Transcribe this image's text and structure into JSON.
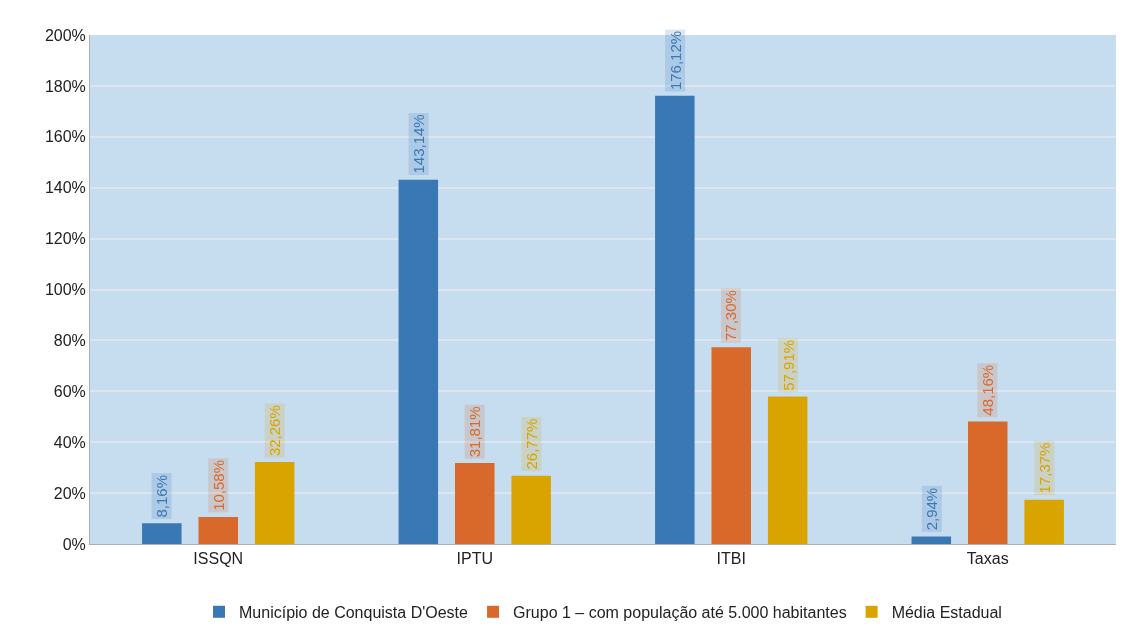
{
  "chart_data": {
    "type": "bar",
    "categories": [
      "ISSQN",
      "IPTU",
      "ITBI",
      "Taxas"
    ],
    "series": [
      {
        "name": "Município de Conquista D'Oeste",
        "color": "#3a78b5",
        "values": [
          8.16,
          143.14,
          176.12,
          2.94
        ],
        "value_labels": [
          "8,16%",
          "143,14%",
          "176,12%",
          "2,94%"
        ]
      },
      {
        "name": "Grupo 1 – com população até 5.000 habitantes",
        "color": "#d9692a",
        "values": [
          10.58,
          31.81,
          77.3,
          48.16
        ],
        "value_labels": [
          "10,58%",
          "31,81%",
          "77,30%",
          "48,16%"
        ]
      },
      {
        "name": "Média Estadual",
        "color": "#d9a400",
        "values": [
          32.26,
          26.77,
          57.91,
          17.37
        ],
        "value_labels": [
          "32,26%",
          "26,77%",
          "57,91%",
          "17,37%"
        ]
      }
    ],
    "ylim": [
      0,
      200
    ],
    "yticks": [
      {
        "value": 0,
        "label": "0%"
      },
      {
        "value": 20,
        "label": "20%"
      },
      {
        "value": 40,
        "label": "40%"
      },
      {
        "value": 60,
        "label": "60%"
      },
      {
        "value": 80,
        "label": "80%"
      },
      {
        "value": 100,
        "label": "100%"
      },
      {
        "value": 120,
        "label": "120%"
      },
      {
        "value": 140,
        "label": "140%"
      },
      {
        "value": 160,
        "label": "160%"
      },
      {
        "value": 180,
        "label": "180%"
      },
      {
        "value": 200,
        "label": "200%"
      }
    ],
    "grid": "y",
    "legend": "bottom"
  }
}
